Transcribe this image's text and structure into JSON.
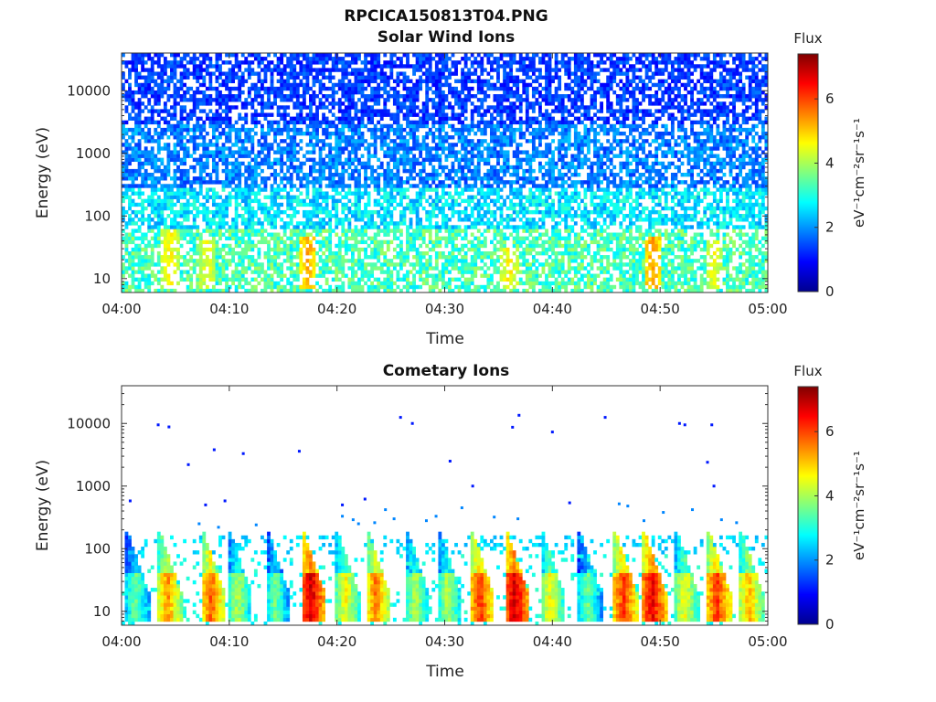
{
  "figure": {
    "title": "RPCICA150813T04.PNG"
  },
  "colormap": "jet",
  "colorbar": {
    "title": "Flux",
    "ticks": [
      0,
      2,
      4,
      6
    ],
    "range": [
      0,
      7.4
    ]
  },
  "chart_data": [
    {
      "type": "heatmap",
      "title": "Solar Wind Ions",
      "xlabel": "Time",
      "ylabel": "Energy (eV)",
      "x_ticks": [
        "04:00",
        "04:10",
        "04:20",
        "04:30",
        "04:40",
        "04:50",
        "05:00"
      ],
      "x_range_minutes": [
        0,
        60
      ],
      "y_scale": "log",
      "y_ticks": [
        10,
        100,
        1000,
        10000
      ],
      "y_range": [
        6,
        40000
      ],
      "colorbar_label": "eV⁻¹cm⁻²sr⁻¹s⁻¹",
      "flux_range": [
        0,
        7.4
      ],
      "description": "Sparse noise-like flux at all energies; blue (~1) at high energy, cyan/green (~2-4) below 100 eV, yellow/orange (~5) streaks near 10-40 eV",
      "hotspots": [
        {
          "t_min": 4.5,
          "e": 30,
          "flux": 5.0
        },
        {
          "t_min": 8.0,
          "e": 20,
          "flux": 4.8
        },
        {
          "t_min": 17.3,
          "e": 25,
          "flux": 5.6
        },
        {
          "t_min": 36.0,
          "e": 15,
          "flux": 5.0
        },
        {
          "t_min": 49.3,
          "e": 25,
          "flux": 5.6
        },
        {
          "t_min": 55.0,
          "e": 20,
          "flux": 4.8
        }
      ]
    },
    {
      "type": "heatmap",
      "title": "Cometary Ions",
      "xlabel": "Time",
      "ylabel": "Energy (eV)",
      "x_ticks": [
        "04:00",
        "04:10",
        "04:20",
        "04:30",
        "04:40",
        "04:50",
        "05:00"
      ],
      "x_range_minutes": [
        0,
        60
      ],
      "y_scale": "log",
      "y_ticks": [
        10,
        100,
        1000,
        10000
      ],
      "y_range": [
        6,
        40000
      ],
      "colorbar_label": "eV⁻¹cm⁻²sr⁻¹s⁻¹",
      "flux_range": [
        0,
        7.4
      ],
      "description": "Periodic dispersed bursts from ~100 eV down to ~8 eV, peak flux ~7 (red) near 10-30 eV; cyan band ~100-160 eV; isolated blue points at high energy",
      "bursts": [
        {
          "t_min": 1.0,
          "peak": 4.0
        },
        {
          "t_min": 4.0,
          "peak": 5.8
        },
        {
          "t_min": 8.0,
          "peak": 6.2
        },
        {
          "t_min": 10.5,
          "peak": 4.5
        },
        {
          "t_min": 14.0,
          "peak": 4.0
        },
        {
          "t_min": 17.3,
          "peak": 7.2
        },
        {
          "t_min": 20.5,
          "peak": 5.0
        },
        {
          "t_min": 23.3,
          "peak": 6.0
        },
        {
          "t_min": 27.0,
          "peak": 4.5
        },
        {
          "t_min": 30.0,
          "peak": 4.5
        },
        {
          "t_min": 33.0,
          "peak": 6.5
        },
        {
          "t_min": 36.2,
          "peak": 7.2
        },
        {
          "t_min": 39.5,
          "peak": 5.0
        },
        {
          "t_min": 43.0,
          "peak": 4.0
        },
        {
          "t_min": 46.3,
          "peak": 6.5
        },
        {
          "t_min": 49.0,
          "peak": 7.0
        },
        {
          "t_min": 52.0,
          "peak": 5.0
        },
        {
          "t_min": 55.0,
          "peak": 6.5
        },
        {
          "t_min": 58.0,
          "peak": 5.5
        }
      ],
      "isolated_points": [
        {
          "t_min": 0.8,
          "e": 580
        },
        {
          "t_min": 3.4,
          "e": 9500
        },
        {
          "t_min": 4.4,
          "e": 8800
        },
        {
          "t_min": 6.2,
          "e": 2200
        },
        {
          "t_min": 7.8,
          "e": 500
        },
        {
          "t_min": 8.6,
          "e": 3800
        },
        {
          "t_min": 9.6,
          "e": 580
        },
        {
          "t_min": 11.3,
          "e": 3300
        },
        {
          "t_min": 16.5,
          "e": 3600
        },
        {
          "t_min": 20.5,
          "e": 500
        },
        {
          "t_min": 22.6,
          "e": 620
        },
        {
          "t_min": 25.9,
          "e": 12500
        },
        {
          "t_min": 27.0,
          "e": 10000
        },
        {
          "t_min": 30.5,
          "e": 2500
        },
        {
          "t_min": 32.6,
          "e": 1000
        },
        {
          "t_min": 36.3,
          "e": 8700
        },
        {
          "t_min": 36.9,
          "e": 13500
        },
        {
          "t_min": 40.0,
          "e": 7300
        },
        {
          "t_min": 41.6,
          "e": 540
        },
        {
          "t_min": 44.9,
          "e": 12500
        },
        {
          "t_min": 51.8,
          "e": 10000
        },
        {
          "t_min": 52.3,
          "e": 9500
        },
        {
          "t_min": 54.4,
          "e": 2400
        },
        {
          "t_min": 54.8,
          "e": 9500
        },
        {
          "t_min": 55.0,
          "e": 1000
        }
      ]
    }
  ]
}
